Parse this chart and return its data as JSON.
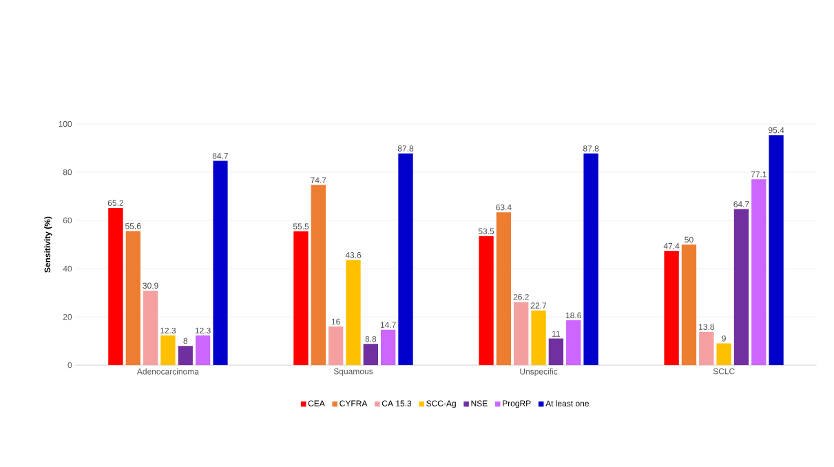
{
  "chart_data": {
    "type": "bar",
    "ylabel": "**Sensitivity (%)**",
    "categories": [
      "Adenocarcinoma",
      "Squamous",
      "Unspecific",
      "SCLC"
    ],
    "series": [
      {
        "name": "CEA",
        "color": "#ff0000",
        "values": [
          65.2,
          55.5,
          53.5,
          47.4
        ]
      },
      {
        "name": "CYFRA",
        "color": "#ed7d31",
        "values": [
          55.6,
          74.7,
          63.4,
          50
        ]
      },
      {
        "name": "CA 15.3",
        "color": "#f4a0a0",
        "values": [
          30.9,
          16,
          26.2,
          13.8
        ]
      },
      {
        "name": "SCC-Ag",
        "color": "#ffc000",
        "values": [
          12.3,
          43.6,
          22.7,
          9
        ]
      },
      {
        "name": "NSE",
        "color": "#7030a0",
        "values": [
          8,
          8.8,
          11,
          64.7
        ]
      },
      {
        "name": "ProgRP",
        "color": "#cc66ff",
        "values": [
          12.3,
          14.7,
          18.6,
          77.1
        ]
      },
      {
        "name": "At least one",
        "color": "#0000cc",
        "values": [
          84.7,
          87.8,
          87.8,
          95.4
        ]
      }
    ],
    "ylim": [
      0,
      100
    ],
    "yticks": [
      0,
      20,
      40,
      60,
      80,
      100
    ],
    "grid": "y",
    "legend": "bottom",
    "data_labels": true
  }
}
